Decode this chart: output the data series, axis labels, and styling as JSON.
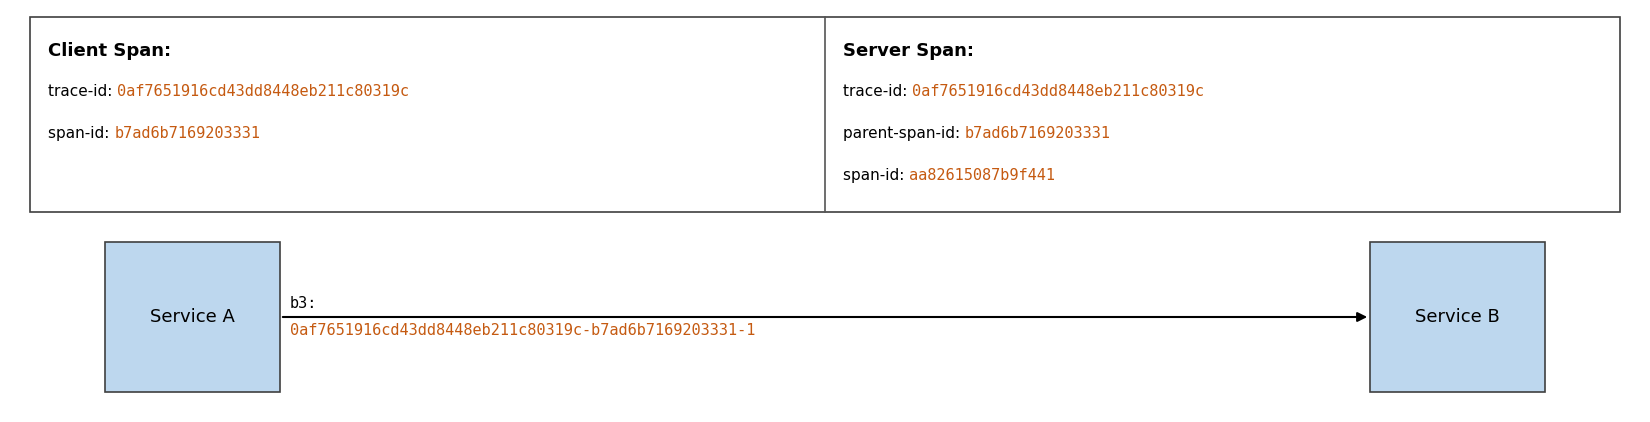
{
  "background_color": "#ffffff",
  "box_fill_color": "#bdd7ee",
  "box_edge_color": "#404040",
  "service_a_label": "Service A",
  "service_b_label": "Service B",
  "arrow_label_top": "b3:",
  "arrow_label_bottom": "0af7651916cd43dd8448eb211c80319c-b7ad6b7169203331-1",
  "arrow_color": "#000000",
  "divider_color": "#555555",
  "client_span_title": "Client Span:",
  "client_span_lines": [
    [
      "trace-id: ",
      "0af7651916cd43dd8448eb211c80319c"
    ],
    [
      "span-id: ",
      "b7ad6b7169203331"
    ]
  ],
  "server_span_title": "Server Span:",
  "server_span_lines": [
    [
      "trace-id: ",
      "0af7651916cd43dd8448eb211c80319c"
    ],
    [
      "parent-span-id: ",
      "b7ad6b7169203331"
    ],
    [
      "span-id: ",
      "aa82615087b9f441"
    ]
  ],
  "label_color": "#000000",
  "value_color": "#c55a11",
  "font_size_service": 13,
  "font_size_arrow": 11,
  "font_size_span_title": 13,
  "font_size_span_text": 11,
  "fig_width": 16.5,
  "fig_height": 4.22,
  "dpi": 100
}
